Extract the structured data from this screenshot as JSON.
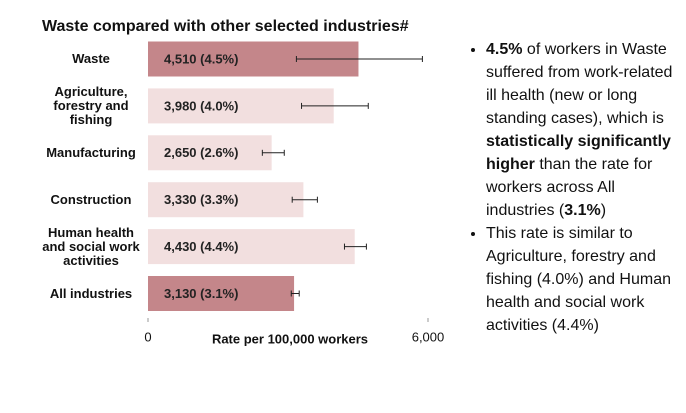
{
  "chart_data": {
    "type": "bar",
    "orientation": "horizontal",
    "title": "Waste compared with other selected industries#",
    "categories": [
      "Waste",
      "Agriculture, forestry and fishing",
      "Manufacturing",
      "Construction",
      "Human health and social work activities",
      "All industries"
    ],
    "values": [
      4510,
      3980,
      2650,
      3330,
      4430,
      3130
    ],
    "value_labels": [
      "4,510 (4.5%)",
      "3,980 (4.0%)",
      "2,650 (2.6%)",
      "3,330 (3.3%)",
      "4,430 (4.4%)",
      "3,130 (3.1%)"
    ],
    "ci_low": [
      3180,
      3290,
      2450,
      3090,
      4210,
      3070
    ],
    "ci_high": [
      5880,
      4720,
      2920,
      3630,
      4680,
      3240
    ],
    "colors": [
      "#c4868a",
      "#f2dfdf",
      "#f2dfdf",
      "#f2dfdf",
      "#f2dfdf",
      "#c4868a"
    ],
    "xlim": [
      0,
      6000
    ],
    "xticks": [
      0,
      {
        "value": 6000,
        "label": "6,000"
      }
    ],
    "xlabel": "Rate per 100,000 workers"
  },
  "notes": [
    [
      {
        "text": "4.5%",
        "bold": true
      },
      {
        "text": " of workers in Waste suffered from work-related ill health (new or long standing cases), which is ",
        "bold": false
      },
      {
        "text": "statistically significantly higher",
        "bold": true
      },
      {
        "text": " than the rate for workers across All industries (",
        "bold": false
      },
      {
        "text": "3.1%",
        "bold": true
      },
      {
        "text": ")",
        "bold": false
      }
    ],
    [
      {
        "text": "This rate is similar to Agriculture, forestry and fishing (4.0%) and Human health and social work activities (4.4%)",
        "bold": false
      }
    ]
  ]
}
